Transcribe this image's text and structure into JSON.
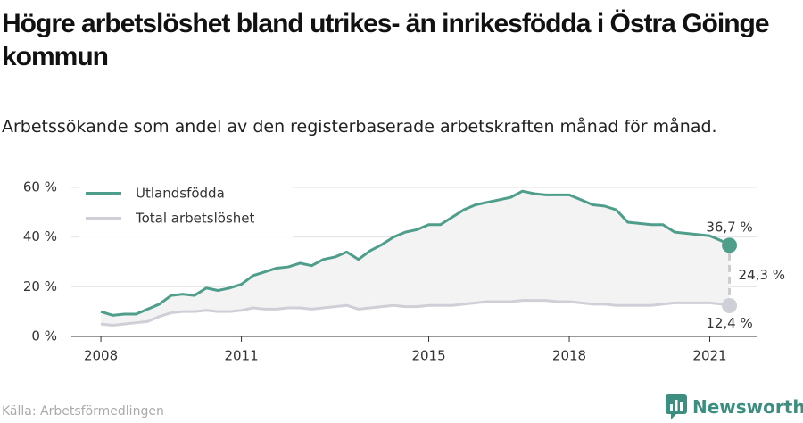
{
  "chart_data": {
    "type": "line",
    "title": "Högre arbetslöshet bland utrikes- än inrikesfödda i Östra Göinge kommun",
    "subtitle": "Arbetssökande som andel av den registerbaserade arbetskraften månad för månad.",
    "source": "Källa: Arbetsförmedlingen",
    "brand": "Newsworthy",
    "x": [
      2008,
      2008.25,
      2008.5,
      2008.75,
      2009,
      2009.25,
      2009.5,
      2009.75,
      2010,
      2010.25,
      2010.5,
      2010.75,
      2011,
      2011.25,
      2011.5,
      2011.75,
      2012,
      2012.25,
      2012.5,
      2012.75,
      2013,
      2013.25,
      2013.5,
      2013.75,
      2014,
      2014.25,
      2014.5,
      2014.75,
      2015,
      2015.25,
      2015.5,
      2015.75,
      2016,
      2016.25,
      2016.5,
      2016.75,
      2017,
      2017.25,
      2017.5,
      2017.75,
      2018,
      2018.25,
      2018.5,
      2018.75,
      2019,
      2019.25,
      2019.5,
      2019.75,
      2020,
      2020.25,
      2020.5,
      2020.75,
      2021,
      2021.25,
      2021.42
    ],
    "series": [
      {
        "name": "Utlandsfödda",
        "color": "#4f9e8c",
        "values": [
          10,
          8.5,
          9,
          9,
          11,
          13,
          16.5,
          17,
          16.5,
          19.5,
          18.5,
          19.5,
          21,
          24.5,
          26,
          27.5,
          28,
          29.5,
          28.5,
          31,
          32,
          34,
          31,
          34.5,
          37,
          40,
          42,
          43,
          45,
          45,
          48,
          51,
          53,
          54,
          55,
          56,
          58.5,
          57.5,
          57,
          57,
          57,
          55,
          53,
          52.5,
          51,
          46,
          45.5,
          45,
          45,
          42,
          41.5,
          41,
          40.5,
          38.5,
          36.7
        ],
        "value_labels": [
          null,
          null,
          null,
          null,
          null,
          null,
          null,
          null,
          null,
          null,
          null,
          null,
          null,
          null,
          null,
          null,
          null,
          null,
          null,
          null,
          null,
          null,
          null,
          null,
          null,
          null,
          null,
          null,
          null,
          null,
          null,
          null,
          null,
          null,
          null,
          null,
          null,
          null,
          null,
          null,
          null,
          null,
          null,
          null,
          null,
          null,
          null,
          null,
          null,
          null,
          null,
          null,
          null,
          null,
          "36,7 %"
        ]
      },
      {
        "name": "Total arbetslöshet",
        "color": "#cfcfd8",
        "values": [
          5,
          4.5,
          5,
          5.5,
          6,
          8,
          9.5,
          10,
          10,
          10.5,
          10,
          10,
          10.5,
          11.5,
          11,
          11,
          11.5,
          11.5,
          11,
          11.5,
          12,
          12.5,
          11,
          11.5,
          12,
          12.5,
          12,
          12,
          12.5,
          12.5,
          12.5,
          13,
          13.5,
          14,
          14,
          14,
          14.5,
          14.5,
          14.5,
          14,
          14,
          13.5,
          13,
          13,
          12.5,
          12.5,
          12.5,
          12.5,
          13,
          13.5,
          13.5,
          13.5,
          13.5,
          13,
          12.4
        ],
        "value_labels": [
          null,
          null,
          null,
          null,
          null,
          null,
          null,
          null,
          null,
          null,
          null,
          null,
          null,
          null,
          null,
          null,
          null,
          null,
          null,
          null,
          null,
          null,
          null,
          null,
          null,
          null,
          null,
          null,
          null,
          null,
          null,
          null,
          null,
          null,
          null,
          null,
          null,
          null,
          null,
          null,
          null,
          null,
          null,
          null,
          null,
          null,
          null,
          null,
          null,
          null,
          null,
          null,
          null,
          null,
          "12,4 %"
        ]
      }
    ],
    "difference": {
      "value": 24.3,
      "label": "24,3 %"
    },
    "xlim": [
      2007.37,
      2022
    ],
    "xticks": [
      2008,
      2011,
      2015,
      2018,
      2021
    ],
    "ylim": [
      0,
      60
    ],
    "yticks": [
      {
        "value": 0,
        "label": "0 %"
      },
      {
        "value": 20,
        "label": "20 %"
      },
      {
        "value": 40,
        "label": "40 %"
      },
      {
        "value": 60,
        "label": "60 %"
      }
    ],
    "grid": true,
    "legend": "top-left"
  }
}
